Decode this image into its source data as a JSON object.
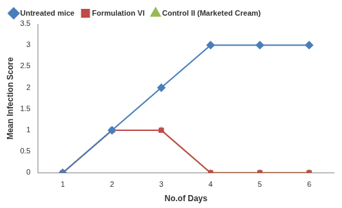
{
  "chart_data": {
    "type": "line",
    "x_label": "No.of Days",
    "y_label": "Mean Infection Score",
    "categories": [
      "1",
      "2",
      "3",
      "4",
      "5",
      "6"
    ],
    "series": [
      {
        "name": "Untreated mice",
        "color": "#4a7ebb",
        "marker": "diamond",
        "values": [
          0,
          1,
          2,
          3,
          3,
          3
        ]
      },
      {
        "name": "Formulation VI",
        "color": "#be4b48",
        "marker": "square",
        "values": [
          0,
          1,
          1,
          0,
          0,
          0
        ]
      },
      {
        "name": "Control II (Marketed Cream)",
        "color": "#98b954",
        "marker": "triangle",
        "values": [
          0,
          1,
          1,
          0,
          0,
          0
        ]
      }
    ],
    "ylim": [
      0,
      3.5
    ],
    "yticks": [
      0,
      0.5,
      1,
      1.5,
      2,
      2.5,
      3,
      3.5
    ],
    "grid": false,
    "legend": "top"
  }
}
